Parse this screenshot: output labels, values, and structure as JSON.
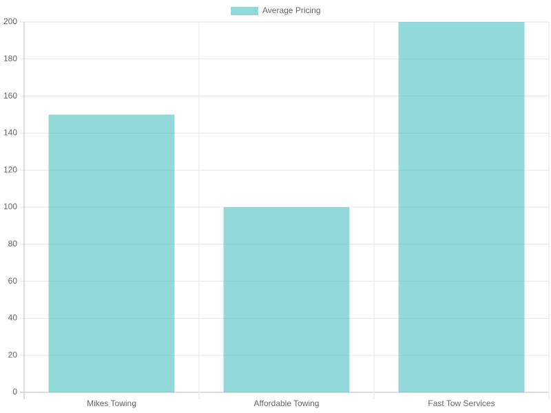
{
  "chart_data": {
    "type": "bar",
    "categories": [
      "Mikes Towing",
      "Affordable Towing",
      "Fast Tow Services"
    ],
    "series": [
      {
        "name": "Average Pricing",
        "color": "rgba(75,192,192,0.6)",
        "values": [
          150,
          100,
          200
        ]
      }
    ],
    "ylim": [
      0,
      200
    ],
    "yticks": [
      0,
      20,
      40,
      60,
      80,
      100,
      120,
      140,
      160,
      180,
      200
    ],
    "grid": true,
    "legend": "top"
  }
}
